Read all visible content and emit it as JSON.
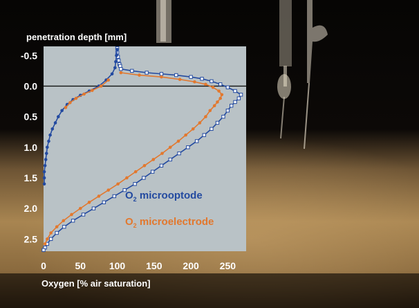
{
  "colors": {
    "background_top": "#0a0806",
    "sediment_light": "#b08a55",
    "sediment_dark": "#3a2a18",
    "plot_panel": "#b9c2c6",
    "microoptode": "#234aa0",
    "microelectrode": "#e2782e",
    "axis_text": "#ffffff",
    "surface_line": "#111111"
  },
  "chart_data": {
    "type": "line",
    "ylabel": "penetration depth [mm]",
    "xlabel": "Oxygen [% air saturation]",
    "xlim": [
      0,
      275
    ],
    "ylim": [
      -0.65,
      2.7
    ],
    "y_reversed": true,
    "x_ticks": [
      "0",
      "50",
      "100",
      "150",
      "200",
      "250"
    ],
    "x_tick_values": [
      0,
      50,
      100,
      150,
      200,
      250
    ],
    "y_ticks": [
      "-0.5",
      "0.0",
      "0.5",
      "1.0",
      "1.5",
      "2.0",
      "2.5"
    ],
    "y_tick_values": [
      -0.5,
      0.0,
      0.5,
      1.0,
      1.5,
      2.0,
      2.5
    ],
    "surface_line_y": 0.0,
    "legend": [
      {
        "main": "O",
        "sub": "2",
        "rest": " microoptode",
        "color": "#234aa0"
      },
      {
        "main": "O",
        "sub": "2",
        "rest": " microelectrode",
        "color": "#e2782e"
      }
    ],
    "series": [
      {
        "name": "O2 microoptode",
        "marker": "square-open",
        "color": "#234aa0",
        "points": [
          [
            100,
            -0.62
          ],
          [
            100,
            -0.55
          ],
          [
            101,
            -0.48
          ],
          [
            102,
            -0.42
          ],
          [
            103,
            -0.36
          ],
          [
            104,
            -0.33
          ],
          [
            105,
            -0.28
          ],
          [
            120,
            -0.25
          ],
          [
            140,
            -0.22
          ],
          [
            160,
            -0.2
          ],
          [
            180,
            -0.18
          ],
          [
            200,
            -0.15
          ],
          [
            215,
            -0.12
          ],
          [
            228,
            -0.08
          ],
          [
            240,
            -0.03
          ],
          [
            250,
            0.02
          ],
          [
            260,
            0.08
          ],
          [
            268,
            0.14
          ],
          [
            265,
            0.2
          ],
          [
            260,
            0.26
          ],
          [
            255,
            0.32
          ],
          [
            250,
            0.4
          ],
          [
            244,
            0.5
          ],
          [
            236,
            0.6
          ],
          [
            228,
            0.7
          ],
          [
            218,
            0.8
          ],
          [
            208,
            0.9
          ],
          [
            196,
            1.0
          ],
          [
            184,
            1.1
          ],
          [
            172,
            1.2
          ],
          [
            160,
            1.3
          ],
          [
            148,
            1.4
          ],
          [
            136,
            1.5
          ],
          [
            124,
            1.6
          ],
          [
            110,
            1.7
          ],
          [
            96,
            1.8
          ],
          [
            82,
            1.9
          ],
          [
            68,
            2.0
          ],
          [
            54,
            2.1
          ],
          [
            40,
            2.2
          ],
          [
            28,
            2.3
          ],
          [
            18,
            2.4
          ],
          [
            10,
            2.5
          ],
          [
            5,
            2.58
          ],
          [
            2,
            2.64
          ],
          [
            0,
            2.68
          ]
        ]
      },
      {
        "name": "O2 microelectrode",
        "marker": "circle-filled",
        "color": "#e2782e",
        "points": [
          [
            105,
            -0.22
          ],
          [
            130,
            -0.18
          ],
          [
            160,
            -0.15
          ],
          [
            185,
            -0.11
          ],
          [
            205,
            -0.07
          ],
          [
            220,
            -0.03
          ],
          [
            230,
            0.02
          ],
          [
            238,
            0.08
          ],
          [
            242,
            0.14
          ],
          [
            240,
            0.2
          ],
          [
            236,
            0.26
          ],
          [
            232,
            0.32
          ],
          [
            226,
            0.4
          ],
          [
            220,
            0.5
          ],
          [
            212,
            0.6
          ],
          [
            203,
            0.7
          ],
          [
            193,
            0.8
          ],
          [
            183,
            0.9
          ],
          [
            172,
            1.0
          ],
          [
            161,
            1.1
          ],
          [
            149,
            1.2
          ],
          [
            137,
            1.3
          ],
          [
            125,
            1.4
          ],
          [
            113,
            1.5
          ],
          [
            101,
            1.6
          ],
          [
            88,
            1.7
          ],
          [
            75,
            1.8
          ],
          [
            62,
            1.9
          ],
          [
            50,
            2.0
          ],
          [
            38,
            2.1
          ],
          [
            27,
            2.2
          ],
          [
            18,
            2.3
          ],
          [
            10,
            2.4
          ],
          [
            5,
            2.5
          ],
          [
            2,
            2.58
          ]
        ]
      },
      {
        "name": "O2 microoptode near-surface",
        "marker": "circle-filled",
        "color": "#234aa0",
        "points": [
          [
            100,
            -0.6
          ],
          [
            99,
            -0.5
          ],
          [
            98,
            -0.4
          ],
          [
            97,
            -0.3
          ],
          [
            93,
            -0.2
          ],
          [
            85,
            -0.1
          ],
          [
            75,
            0.0
          ],
          [
            62,
            0.08
          ],
          [
            50,
            0.15
          ],
          [
            40,
            0.22
          ],
          [
            32,
            0.3
          ],
          [
            25,
            0.4
          ],
          [
            20,
            0.5
          ],
          [
            16,
            0.6
          ],
          [
            12,
            0.7
          ],
          [
            9,
            0.8
          ],
          [
            7,
            0.9
          ],
          [
            5,
            1.0
          ],
          [
            4,
            1.1
          ],
          [
            3,
            1.2
          ],
          [
            2,
            1.3
          ],
          [
            1,
            1.4
          ],
          [
            1,
            1.5
          ],
          [
            1,
            1.6
          ]
        ]
      },
      {
        "name": "O2 microelectrode near-surface",
        "marker": "circle-filled",
        "color": "#e2782e",
        "points": [
          [
            88,
            -0.1
          ],
          [
            78,
            0.0
          ],
          [
            66,
            0.07
          ],
          [
            55,
            0.13
          ],
          [
            44,
            0.2
          ],
          [
            36,
            0.27
          ],
          [
            30,
            0.35
          ]
        ]
      }
    ]
  }
}
